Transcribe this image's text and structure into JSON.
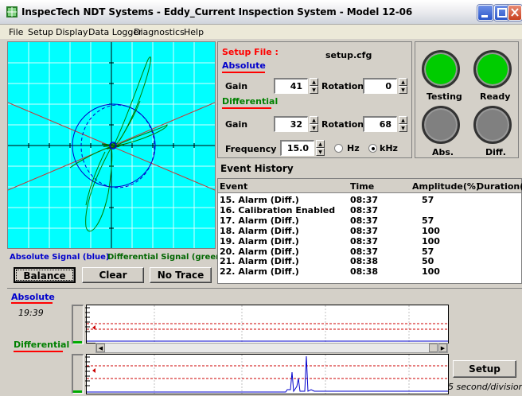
{
  "window": {
    "title": "InspecTech NDT Systems - Eddy_Current Inspection System - Model 12-06"
  },
  "menu": [
    "File",
    "Setup",
    "Display",
    "Data Logger",
    "Diagnostics",
    "Help"
  ],
  "plot": {
    "legend_absolute": "Absolute Signal (blue)",
    "legend_differential": "Differential Signal (green)",
    "colors": {
      "background": "#00ffff",
      "absolute": "#0000cc",
      "differential": "#008000",
      "reference": "#cc0000"
    }
  },
  "buttons": {
    "balance": "Balance",
    "clear": "Clear",
    "no_trace": "No Trace",
    "setup": "Setup"
  },
  "setup": {
    "file_label": "Setup File :",
    "file_name": "setup.cfg",
    "absolute_title": "Absolute",
    "differential_title": "Differential",
    "gain_label": "Gain",
    "rotation_label": "Rotation",
    "absolute_gain": "41",
    "absolute_rotation": "0",
    "differential_gain": "32",
    "differential_rotation": "68",
    "frequency_label": "Frequency",
    "frequency_value": "15.0",
    "unit_hz": "Hz",
    "unit_khz": "kHz",
    "selected_unit": "kHz"
  },
  "status": {
    "testing": "Testing",
    "ready": "Ready",
    "abs": "Abs.",
    "diff": "Diff.",
    "colors": {
      "on": "#00cc00",
      "off": "#808080"
    }
  },
  "events": {
    "title": "Event History",
    "columns": [
      "Event",
      "Time",
      "Amplitude(%)",
      "Duration(s)"
    ],
    "rows": [
      [
        "15. Alarm (Diff.)",
        "08:37",
        "57",
        ""
      ],
      [
        "16. Calibration Enabled",
        "08:37",
        "",
        ""
      ],
      [
        "17. Alarm (Diff.)",
        "08:37",
        "57",
        ""
      ],
      [
        "18. Alarm (Diff.)",
        "08:37",
        "100",
        ""
      ],
      [
        "19. Alarm (Diff.)",
        "08:37",
        "100",
        ""
      ],
      [
        "20. Alarm (Diff.)",
        "08:37",
        "57",
        ""
      ],
      [
        "21. Alarm (Diff.)",
        "08:38",
        "50",
        ""
      ],
      [
        "22. Alarm (Diff.)",
        "08:38",
        "100",
        ""
      ]
    ]
  },
  "strip": {
    "absolute_label": "Absolute",
    "time_label": "19:39",
    "differential_label": "Differential",
    "division_label": "5 second/division"
  }
}
